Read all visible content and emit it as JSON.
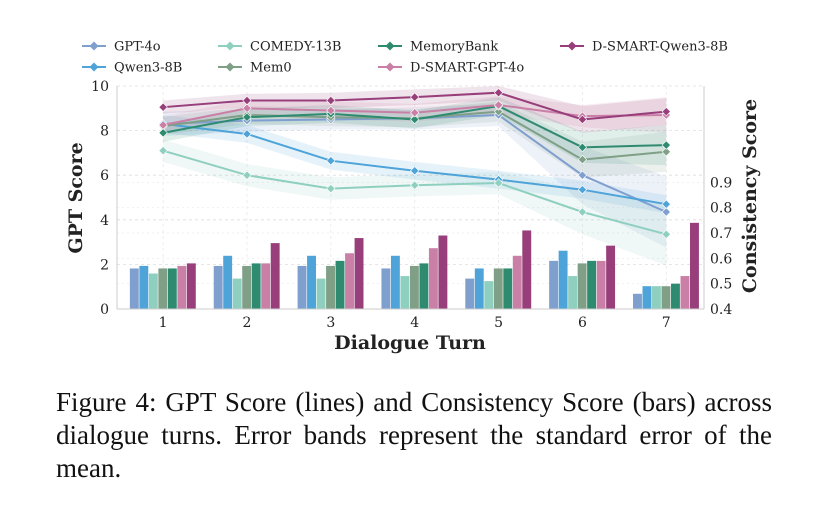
{
  "chart_data": {
    "type": "line+bar",
    "xlabel": "Dialogue Turn",
    "ylabel_left": "GPT Score",
    "ylabel_right": "Consistency Score",
    "x": [
      1,
      2,
      3,
      4,
      5,
      6,
      7
    ],
    "ylim_left": [
      0,
      10
    ],
    "yticks_left": [
      "0",
      "2",
      "4",
      "6",
      "8",
      "10"
    ],
    "ylim_right": [
      0.4,
      1.28
    ],
    "yticks_right": [
      "0.4",
      "0.5",
      "0.6",
      "0.7",
      "0.8",
      "0.9"
    ],
    "legend_location": "top",
    "series": [
      {
        "name": "GPT-4o",
        "color": "#7f9fcf",
        "gpt": [
          8.3,
          8.45,
          8.5,
          8.55,
          8.7,
          6.0,
          4.35
        ],
        "err": [
          0.55,
          0.5,
          0.45,
          0.5,
          0.5,
          1.3,
          1.6
        ],
        "consistency": [
          0.56,
          0.57,
          0.57,
          0.56,
          0.52,
          0.59,
          0.46
        ]
      },
      {
        "name": "Qwen3-8B",
        "color": "#4ea3d9",
        "gpt": [
          8.3,
          7.85,
          6.65,
          6.2,
          5.8,
          5.35,
          4.7
        ],
        "err": [
          0.4,
          0.4,
          0.4,
          0.4,
          0.4,
          0.4,
          0.4
        ],
        "consistency": [
          0.57,
          0.61,
          0.61,
          0.61,
          0.56,
          0.63,
          0.49
        ]
      },
      {
        "name": "COMEDY-13B",
        "color": "#8fcfbf",
        "gpt": [
          7.1,
          6.0,
          5.4,
          5.55,
          5.65,
          4.35,
          3.35
        ],
        "err": [
          0.5,
          0.5,
          0.5,
          0.5,
          0.5,
          1.0,
          1.4
        ],
        "consistency": [
          0.54,
          0.52,
          0.52,
          0.53,
          0.51,
          0.53,
          0.49
        ]
      },
      {
        "name": "Mem0",
        "color": "#7f9f86",
        "gpt": [
          8.2,
          8.7,
          8.6,
          8.55,
          8.85,
          6.7,
          7.05
        ],
        "err": [
          0.4,
          0.4,
          0.4,
          0.4,
          0.45,
          0.8,
          0.9
        ],
        "consistency": [
          0.56,
          0.57,
          0.57,
          0.57,
          0.56,
          0.58,
          0.49
        ]
      },
      {
        "name": "MemoryBank",
        "color": "#2e8b70",
        "gpt": [
          7.9,
          8.6,
          8.75,
          8.5,
          9.1,
          7.25,
          7.35
        ],
        "err": [
          0.4,
          0.4,
          0.4,
          0.4,
          0.4,
          0.7,
          0.9
        ],
        "consistency": [
          0.56,
          0.58,
          0.59,
          0.58,
          0.56,
          0.59,
          0.5
        ]
      },
      {
        "name": "D-SMART-GPT-4o",
        "color": "#c97fa6",
        "gpt": [
          8.25,
          9.0,
          8.9,
          8.8,
          9.15,
          8.65,
          8.7
        ],
        "err": [
          0.4,
          0.4,
          0.4,
          0.4,
          0.4,
          0.5,
          0.8
        ],
        "consistency": [
          0.57,
          0.58,
          0.62,
          0.64,
          0.61,
          0.59,
          0.53
        ]
      },
      {
        "name": "D-SMART-Qwen3-8B",
        "color": "#973e7b",
        "gpt": [
          9.05,
          9.35,
          9.35,
          9.5,
          9.7,
          8.5,
          8.85
        ],
        "err": [
          0.3,
          0.3,
          0.35,
          0.35,
          0.35,
          0.6,
          0.6
        ],
        "consistency": [
          0.58,
          0.66,
          0.68,
          0.69,
          0.71,
          0.65,
          0.74
        ]
      }
    ],
    "legend_order": [
      "GPT-4o",
      "COMEDY-13B",
      "MemoryBank",
      "D-SMART-Qwen3-8B",
      "Qwen3-8B",
      "Mem0",
      "D-SMART-GPT-4o"
    ]
  },
  "caption": "Figure 4: GPT Score (lines) and Consistency Score (bars) across dialogue turns. Error bands represent the standard error of the mean."
}
